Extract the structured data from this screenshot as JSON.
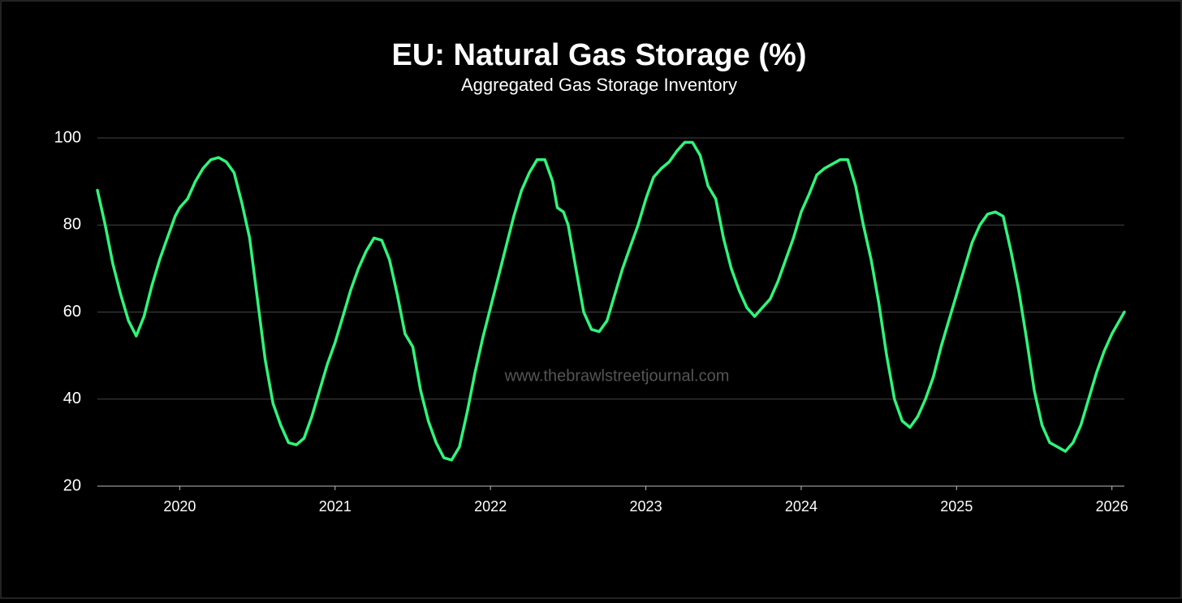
{
  "chart_data": {
    "type": "line",
    "title": "EU: Natural Gas Storage (%)",
    "subtitle": "Aggregated Gas Storage Inventory",
    "watermark": "www.thebrawlstreetjournal.com",
    "color": "#2ef57a",
    "grid": true,
    "x": [
      2019.47,
      2019.52,
      2019.57,
      2019.62,
      2019.67,
      2019.72,
      2019.77,
      2019.82,
      2019.87,
      2019.92,
      2019.97,
      2020.0,
      2020.05,
      2020.1,
      2020.15,
      2020.2,
      2020.25,
      2020.3,
      2020.35,
      2020.4,
      2020.45,
      2020.5,
      2020.55,
      2020.6,
      2020.65,
      2020.7,
      2020.75,
      2020.8,
      2020.85,
      2020.9,
      2020.95,
      2021.0,
      2021.05,
      2021.1,
      2021.15,
      2021.2,
      2021.25,
      2021.3,
      2021.35,
      2021.4,
      2021.45,
      2021.5,
      2021.55,
      2021.6,
      2021.65,
      2021.7,
      2021.75,
      2021.8,
      2021.85,
      2021.9,
      2021.95,
      2022.0,
      2022.05,
      2022.1,
      2022.15,
      2022.2,
      2022.25,
      2022.3,
      2022.35,
      2022.4,
      2022.43,
      2022.47,
      2022.5,
      2022.55,
      2022.6,
      2022.65,
      2022.7,
      2022.75,
      2022.8,
      2022.85,
      2022.9,
      2022.95,
      2023.0,
      2023.05,
      2023.1,
      2023.15,
      2023.2,
      2023.25,
      2023.3,
      2023.35,
      2023.4,
      2023.45,
      2023.5,
      2023.55,
      2023.6,
      2023.65,
      2023.7,
      2023.75,
      2023.8,
      2023.85,
      2023.9,
      2023.95,
      2024.0,
      2024.05,
      2024.1,
      2024.15,
      2024.2,
      2024.25,
      2024.3,
      2024.35,
      2024.4,
      2024.45,
      2024.5,
      2024.55,
      2024.6,
      2024.65,
      2024.7,
      2024.75,
      2024.8,
      2024.85,
      2024.9,
      2024.95,
      2025.0,
      2025.05,
      2025.1,
      2025.15,
      2025.2,
      2025.25,
      2025.3,
      2025.35,
      2025.4,
      2025.45,
      2025.5,
      2025.55,
      2025.6,
      2025.65,
      2025.7,
      2025.75,
      2025.8,
      2025.85,
      2025.9,
      2025.95,
      2026.0,
      2026.08
    ],
    "values": [
      88,
      80,
      71,
      64,
      58,
      54.5,
      59,
      66,
      72,
      77,
      82,
      84,
      86,
      90,
      93,
      95,
      95.5,
      94.5,
      92,
      85,
      77,
      63,
      49,
      39,
      34,
      30,
      29.5,
      31,
      36,
      42,
      48,
      53,
      59,
      65,
      70,
      74,
      77,
      76.5,
      72,
      64,
      55,
      52,
      42,
      35,
      30,
      26.5,
      26,
      29,
      37,
      46,
      54,
      61,
      68,
      75,
      82,
      88,
      92,
      95,
      95,
      90,
      84,
      83,
      80,
      70,
      60,
      56,
      55.5,
      58,
      64,
      70,
      75,
      80,
      86,
      91,
      93,
      94.5,
      97,
      99,
      99,
      96,
      89,
      86,
      77,
      70,
      65,
      61,
      59,
      61,
      63,
      67,
      72,
      77,
      83,
      87,
      91.5,
      93,
      94,
      95,
      95,
      89,
      80,
      72,
      62,
      50,
      40,
      35,
      33.5,
      36,
      40,
      45,
      52,
      58,
      64,
      70,
      76,
      80,
      82.5,
      83,
      82,
      74,
      65,
      54,
      42,
      34,
      30,
      29,
      28,
      30,
      34,
      40,
      46,
      51,
      55,
      60
    ],
    "xlim": [
      2019.47,
      2026.08
    ],
    "xticks": [
      2020,
      2021,
      2022,
      2023,
      2024,
      2025,
      2026
    ],
    "ylim": [
      20,
      100
    ],
    "yticks": [
      20,
      40,
      60,
      80,
      100
    ]
  }
}
